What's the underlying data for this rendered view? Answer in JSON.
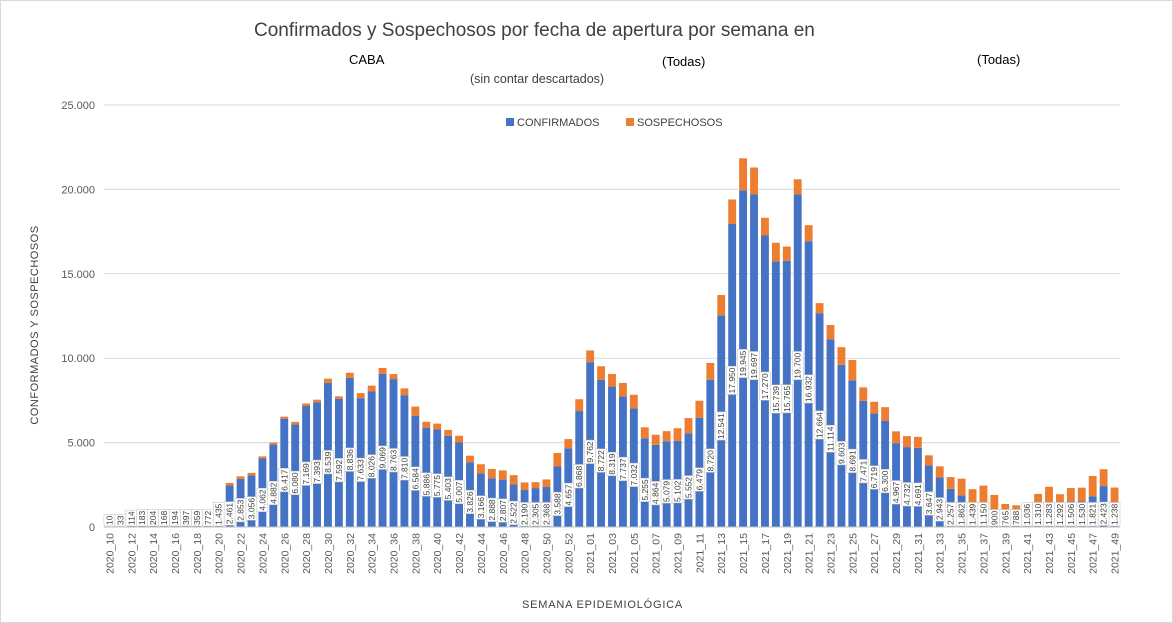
{
  "header": {
    "title": "Confirmados y Sospechosos por fecha de apertura por semana en",
    "filter_region": "CABA",
    "subtitle": "(sin contar descartados)",
    "filter_1": "(Todas)",
    "filter_2": "(Todas)"
  },
  "colors": {
    "confirmados": "#4472C4",
    "sospechosos": "#ED7D31",
    "grid": "#d9d9d9"
  },
  "chart_data": {
    "type": "bar",
    "stacked": true,
    "xlabel": "SEMANA EPIDEMIOLÓGICA",
    "ylabel": "CONFORMADOS Y SOSPECHOSOS",
    "ylim": [
      0,
      25000
    ],
    "yticks": [
      "0",
      "5.000",
      "10.000",
      "15.000",
      "20.000",
      "25.000"
    ],
    "grid": true,
    "legend_position": "top-center",
    "categories": [
      "2020_10",
      "2020_11",
      "2020_12",
      "2020_13",
      "2020_14",
      "2020_15",
      "2020_16",
      "2020_17",
      "2020_18",
      "2020_19",
      "2020_20",
      "2020_21",
      "2020_22",
      "2020_23",
      "2020_24",
      "2020_25",
      "2020_26",
      "2020_27",
      "2020_28",
      "2020_29",
      "2020_30",
      "2020_31",
      "2020_32",
      "2020_33",
      "2020_34",
      "2020_35",
      "2020_36",
      "2020_37",
      "2020_38",
      "2020_39",
      "2020_40",
      "2020_41",
      "2020_42",
      "2020_43",
      "2020_44",
      "2020_45",
      "2020_46",
      "2020_47",
      "2020_48",
      "2020_49",
      "2020_50",
      "2020_51",
      "2020_52",
      "2020_53",
      "2021_01",
      "2021_02",
      "2021_03",
      "2021_04",
      "2021_05",
      "2021_06",
      "2021_07",
      "2021_08",
      "2021_09",
      "2021_10",
      "2021_11",
      "2021_12",
      "2021_13",
      "2021_14",
      "2021_15",
      "2021_16",
      "2021_17",
      "2021_18",
      "2021_19",
      "2021_20",
      "2021_21",
      "2021_22",
      "2021_23",
      "2021_24",
      "2021_25",
      "2021_26",
      "2021_27",
      "2021_28",
      "2021_29",
      "2021_30",
      "2021_31",
      "2021_32",
      "2021_33",
      "2021_34",
      "2021_35",
      "2021_36",
      "2021_37",
      "2021_38",
      "2021_39",
      "2021_40",
      "2021_41",
      "2021_42",
      "2021_43",
      "2021_44",
      "2021_45",
      "2021_46",
      "2021_47",
      "2021_48",
      "2021_49"
    ],
    "series": [
      {
        "name": "CONFIRMADOS",
        "values": [
          10,
          33,
          114,
          183,
          204,
          168,
          194,
          397,
          359,
          772,
          1435,
          2461,
          2853,
          3056,
          4062,
          4882,
          6417,
          6080,
          7169,
          7393,
          8539,
          7592,
          8836,
          7633,
          8026,
          9069,
          8763,
          7810,
          6584,
          5886,
          5775,
          5403,
          5007,
          3826,
          3166,
          2888,
          2807,
          2522,
          2190,
          2305,
          2368,
          3588,
          4657,
          6868,
          9762,
          8722,
          8319,
          7737,
          7032,
          5255,
          4864,
          5079,
          5102,
          5552,
          6479,
          8720,
          12541,
          17950,
          19945,
          19697,
          17270,
          15739,
          15765,
          19700,
          16932,
          12664,
          11114,
          9603,
          8691,
          7471,
          6719,
          6300,
          4967,
          4732,
          4691,
          3647,
          2943,
          2257,
          1862,
          1439,
          1150,
          900,
          765,
          788,
          1036,
          1310,
          1283,
          1292,
          1506,
          1530,
          1821,
          2423,
          1238
        ],
        "value_labels": [
          "10",
          "33",
          "114",
          "183",
          "204",
          "168",
          "194",
          "397",
          "359",
          "772",
          "1.435",
          "2.461",
          "2.853",
          "3.056",
          "4.062",
          "4.882",
          "6.417",
          "6.080",
          "7.169",
          "7.393",
          "8.539",
          "7.592",
          "8.836",
          "7.633",
          "8.026",
          "9.069",
          "8.763",
          "7.810",
          "6.584",
          "5.886",
          "5.775",
          "5.403",
          "5.007",
          "3.826",
          "3.166",
          "2.888",
          "2.807",
          "2.522",
          "2.190",
          "2.305",
          "2.368",
          "3.588",
          "4.657",
          "6.868",
          "9.762",
          "8.722",
          "8.319",
          "7.737",
          "7.032",
          "5.255",
          "4.864",
          "5.079",
          "5.102",
          "5.552",
          "6.479",
          "8.720",
          "12.541",
          "17.950",
          "19.945",
          "19.697",
          "17.270",
          "15.739",
          "15.765",
          "19.700",
          "16.932",
          "12.664",
          "11.114",
          "9.603",
          "8.691",
          "7.471",
          "6.719",
          "6.300",
          "4.967",
          "4.732",
          "4.691",
          "3.647",
          "2.943",
          "2.257",
          "1.862",
          "1.439",
          "1.150",
          "900",
          "765",
          "788",
          "1.036",
          "1.310",
          "1.283",
          "1.292",
          "1.506",
          "1.530",
          "1.821",
          "2.423",
          "1.238"
        ]
      },
      {
        "name": "SOSPECHOSOS",
        "values": [
          0,
          0,
          0,
          0,
          0,
          0,
          0,
          0,
          0,
          0,
          0,
          150,
          150,
          150,
          120,
          120,
          120,
          150,
          150,
          150,
          250,
          150,
          300,
          300,
          350,
          350,
          300,
          400,
          550,
          350,
          350,
          350,
          400,
          400,
          550,
          550,
          550,
          550,
          450,
          350,
          450,
          800,
          550,
          700,
          700,
          800,
          750,
          800,
          800,
          650,
          600,
          600,
          750,
          900,
          1000,
          1000,
          1200,
          1450,
          1900,
          1600,
          1050,
          1100,
          850,
          900,
          950,
          600,
          850,
          1050,
          1200,
          800,
          700,
          800,
          700,
          650,
          650,
          600,
          650,
          700,
          1000,
          800,
          1300,
          1000,
          600,
          500,
          400,
          650,
          1100,
          650,
          800,
          800,
          1200,
          1000,
          1100
        ]
      }
    ],
    "labeled_categories": [
      "2020_10",
      "2020_12",
      "2020_14",
      "2020_16",
      "2020_18",
      "2020_20",
      "2020_22",
      "2020_24",
      "2020_26",
      "2020_28",
      "2020_30",
      "2020_32",
      "2020_34",
      "2020_36",
      "2020_38",
      "2020_40",
      "2020_42",
      "2020_44",
      "2020_46",
      "2020_48",
      "2020_50",
      "2020_52",
      "2021_01",
      "2021_03",
      "2021_05",
      "2021_07",
      "2021_09",
      "2021_11",
      "2021_13",
      "2021_15",
      "2021_17",
      "2021_19",
      "2021_21",
      "2021_23",
      "2021_25",
      "2021_27",
      "2021_29",
      "2021_31",
      "2021_33",
      "2021_35",
      "2021_37",
      "2021_39",
      "2021_41",
      "2021_43",
      "2021_45",
      "2021_47",
      "2021_49"
    ]
  }
}
